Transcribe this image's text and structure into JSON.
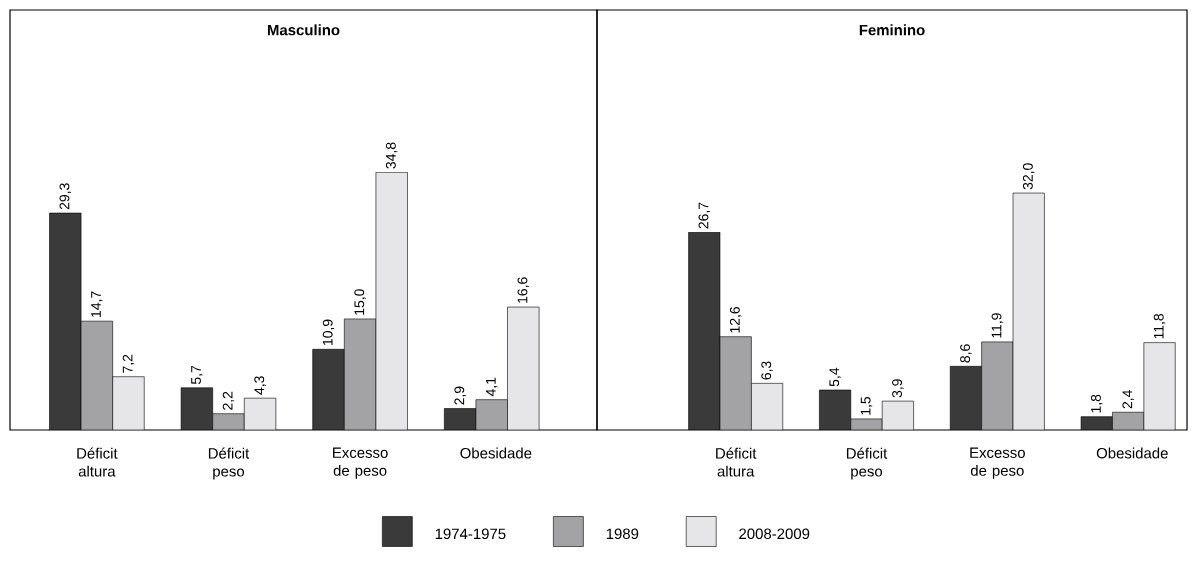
{
  "chart_data": [
    {
      "type": "bar",
      "title": "**Masculino**",
      "categories": [
        "Déficit altura",
        "Déficit peso",
        "Excesso de peso",
        "Obesidade"
      ],
      "legend": "bottom",
      "data_labels": true,
      "series": [
        {
          "name": "1974-1975",
          "color": "#3a3a3a",
          "values": [
            29.3,
            5.7,
            10.9,
            2.9
          ],
          "value_labels": [
            "29,3",
            "5,7",
            "10,9",
            "2,9"
          ]
        },
        {
          "name": "1989",
          "color": "#a3a3a5",
          "values": [
            14.7,
            2.2,
            15.0,
            4.1
          ],
          "value_labels": [
            "14,7",
            "2,2",
            "15,0",
            "4,1"
          ]
        },
        {
          "name": "2008-2009",
          "color": "#e6e6e8",
          "values": [
            7.2,
            4.3,
            34.8,
            16.6
          ],
          "value_labels": [
            "7,2",
            "4,3",
            "34,8",
            "16,6"
          ]
        }
      ]
    },
    {
      "type": "bar",
      "title": "**Feminino**",
      "categories": [
        "Déficit altura",
        "Déficit peso",
        "Excesso de peso",
        "Obesidade"
      ],
      "data_labels": true,
      "series": [
        {
          "color": "#3a3a3a",
          "values": [
            26.7,
            5.4,
            8.6,
            1.8
          ],
          "value_labels": [
            "26,7",
            "5,4",
            "8,6",
            "1,8"
          ]
        },
        {
          "color": "#a3a3a5",
          "values": [
            12.6,
            1.5,
            11.9,
            2.4
          ],
          "value_labels": [
            "12,6",
            "1,5",
            "11,9",
            "2,4"
          ]
        },
        {
          "color": "#e6e6e8",
          "values": [
            6.3,
            3.9,
            32.0,
            11.8
          ],
          "value_labels": [
            "6,3",
            "3,9",
            "32,0",
            "11,8"
          ]
        }
      ]
    }
  ]
}
